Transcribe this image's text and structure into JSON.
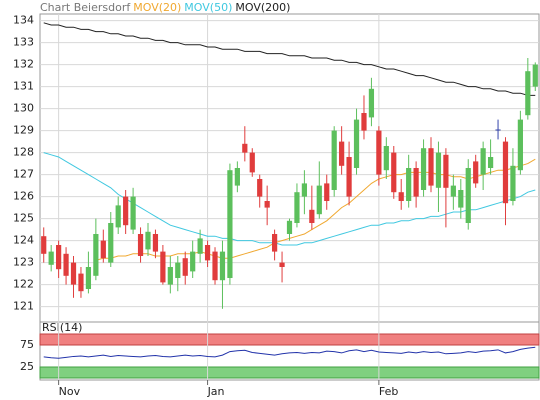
{
  "chart_data": [
    {
      "type": "candlestick",
      "title": "Chart Beiersdorf",
      "categories": [
        null,
        null,
        "Nov",
        null,
        null,
        null,
        null,
        null,
        null,
        null,
        null,
        null,
        null,
        null,
        null,
        null,
        null,
        null,
        null,
        null,
        null,
        null,
        "Jan",
        null,
        null,
        null,
        null,
        null,
        null,
        null,
        null,
        null,
        null,
        null,
        null,
        null,
        null,
        null,
        null,
        null,
        null,
        null,
        null,
        null,
        null,
        "Feb",
        null,
        null,
        null,
        null,
        null,
        null,
        null,
        null,
        null,
        null,
        null,
        null,
        null,
        null,
        null,
        null,
        null,
        null,
        null,
        null,
        null
      ],
      "open": [
        124.2,
        122.9,
        123.8,
        123.4,
        123.0,
        122.5,
        121.8,
        122.4,
        124.0,
        123.0,
        124.6,
        126.0,
        124.5,
        124.3,
        123.6,
        124.3,
        123.5,
        122.0,
        122.3,
        123.2,
        122.6,
        123.4,
        123.8,
        123.5,
        122.2,
        122.3,
        126.5,
        128.4,
        128.0,
        126.8,
        125.8,
        124.3,
        123.0,
        124.3,
        124.8,
        126.0,
        125.4,
        125.2,
        126.6,
        126.3,
        128.5,
        127.8,
        127.3,
        129.8,
        129.6,
        129.0,
        127.2,
        128.0,
        126.2,
        125.8,
        127.3,
        126.3,
        128.2,
        126.4,
        127.9,
        126.0,
        125.5,
        124.8,
        127.6,
        127.0,
        127.3,
        129.05,
        128.5,
        125.8,
        127.2,
        129.7,
        131.0
      ],
      "high": [
        124.6,
        123.8,
        124.0,
        123.7,
        123.3,
        122.8,
        123.5,
        125.0,
        124.5,
        125.3,
        126.0,
        126.3,
        126.4,
        124.6,
        124.8,
        124.5,
        123.8,
        123.3,
        123.3,
        123.5,
        124.0,
        124.5,
        124.0,
        123.7,
        124.0,
        127.5,
        127.6,
        129.2,
        128.2,
        127.0,
        126.5,
        124.5,
        123.5,
        125.0,
        126.6,
        127.2,
        126.5,
        127.6,
        127.0,
        129.2,
        129.2,
        128.5,
        130.0,
        130.6,
        131.4,
        129.2,
        128.7,
        128.3,
        126.8,
        127.9,
        127.6,
        128.6,
        128.7,
        128.5,
        128.2,
        127.0,
        126.8,
        127.7,
        127.9,
        128.5,
        128.6,
        129.5,
        128.7,
        128.2,
        129.9,
        132.3,
        132.1
      ],
      "low": [
        123.0,
        122.6,
        122.3,
        122.0,
        121.4,
        121.4,
        121.6,
        122.2,
        123.0,
        122.8,
        124.3,
        124.3,
        124.3,
        123.0,
        123.3,
        123.2,
        122.0,
        121.6,
        121.7,
        122.0,
        122.3,
        123.0,
        122.8,
        122.0,
        120.9,
        122.0,
        126.2,
        127.6,
        126.9,
        125.5,
        124.7,
        123.1,
        122.1,
        124.0,
        124.6,
        125.2,
        124.5,
        125.0,
        125.4,
        126.0,
        127.0,
        125.6,
        127.0,
        128.6,
        129.2,
        126.5,
        126.8,
        125.9,
        125.4,
        125.5,
        125.5,
        126.0,
        126.2,
        125.3,
        124.6,
        125.4,
        125.0,
        124.5,
        126.4,
        126.3,
        127.0,
        128.6,
        124.7,
        125.6,
        127.0,
        129.5,
        130.8
      ],
      "close": [
        123.4,
        123.5,
        122.7,
        122.4,
        122.0,
        121.7,
        122.8,
        124.3,
        123.2,
        124.8,
        125.6,
        124.7,
        126.0,
        123.3,
        124.4,
        123.5,
        122.1,
        122.8,
        123.0,
        122.4,
        123.5,
        124.1,
        123.1,
        122.2,
        123.5,
        127.2,
        127.3,
        128.0,
        127.1,
        126.0,
        125.5,
        123.5,
        122.8,
        124.9,
        126.2,
        126.6,
        124.8,
        126.5,
        125.8,
        129.0,
        127.4,
        126.0,
        129.5,
        129.0,
        130.9,
        127.0,
        128.3,
        126.2,
        125.8,
        127.3,
        126.0,
        128.2,
        126.5,
        128.0,
        126.4,
        126.5,
        126.3,
        127.3,
        126.6,
        128.2,
        127.8,
        129.05,
        125.7,
        127.4,
        129.5,
        131.7,
        132.0
      ],
      "up_color": "#5cbf5c",
      "down_color": "#e03c3c",
      "flat_color": "#3344aa",
      "series": [
        {
          "name": "MOV(20)",
          "color": "#f0a830",
          "values": [
            null,
            null,
            null,
            null,
            null,
            null,
            null,
            123.1,
            123.2,
            123.2,
            123.3,
            123.3,
            123.4,
            123.4,
            123.4,
            123.3,
            123.3,
            123.3,
            123.4,
            123.4,
            123.4,
            123.5,
            123.4,
            123.3,
            123.2,
            123.2,
            123.3,
            123.4,
            123.5,
            123.6,
            123.7,
            123.9,
            124.0,
            124.1,
            124.2,
            124.3,
            124.5,
            124.7,
            124.9,
            125.2,
            125.5,
            125.7,
            126.0,
            126.3,
            126.6,
            126.8,
            126.9,
            127.0,
            127.0,
            127.1,
            127.1,
            127.1,
            127.1,
            127.0,
            127.0,
            126.9,
            126.9,
            126.8,
            126.9,
            127.0,
            127.1,
            127.2,
            127.2,
            127.3,
            127.4,
            127.5,
            127.7
          ]
        },
        {
          "name": "MOV(50)",
          "color": "#40c8e0",
          "values": [
            128.0,
            127.9,
            127.8,
            127.6,
            127.4,
            127.2,
            127.0,
            126.8,
            126.6,
            126.4,
            126.1,
            125.9,
            125.7,
            125.5,
            125.3,
            125.1,
            124.9,
            124.7,
            124.6,
            124.5,
            124.4,
            124.3,
            124.2,
            124.2,
            124.1,
            124.1,
            124.0,
            124.0,
            124.0,
            123.9,
            123.9,
            123.9,
            123.8,
            123.8,
            123.8,
            123.9,
            123.9,
            124.0,
            124.1,
            124.2,
            124.3,
            124.4,
            124.5,
            124.6,
            124.7,
            124.7,
            124.8,
            124.8,
            124.9,
            124.9,
            125.0,
            125.0,
            125.1,
            125.1,
            125.2,
            125.3,
            125.3,
            125.4,
            125.4,
            125.5,
            125.6,
            125.7,
            125.8,
            125.9,
            126.0,
            126.2,
            126.3
          ]
        },
        {
          "name": "MOV(200)",
          "color": "#222222",
          "values": [
            133.9,
            133.8,
            133.8,
            133.7,
            133.7,
            133.6,
            133.6,
            133.5,
            133.5,
            133.4,
            133.4,
            133.3,
            133.3,
            133.2,
            133.2,
            133.1,
            133.1,
            133.0,
            133.0,
            132.9,
            132.9,
            132.9,
            132.8,
            132.8,
            132.7,
            132.7,
            132.7,
            132.6,
            132.6,
            132.6,
            132.5,
            132.5,
            132.5,
            132.4,
            132.4,
            132.4,
            132.3,
            132.3,
            132.3,
            132.2,
            132.2,
            132.1,
            132.1,
            132.0,
            132.0,
            131.9,
            131.8,
            131.8,
            131.7,
            131.6,
            131.5,
            131.5,
            131.4,
            131.3,
            131.2,
            131.2,
            131.1,
            131.0,
            131.0,
            130.9,
            130.9,
            130.8,
            130.8,
            130.7,
            130.7,
            130.6,
            130.6
          ]
        }
      ],
      "ylim": [
        120.3,
        134.3
      ],
      "yticks": [
        121,
        122,
        123,
        124,
        125,
        126,
        127,
        128,
        129,
        130,
        131,
        132,
        133,
        134
      ],
      "grid": true
    },
    {
      "type": "line",
      "title": "RSI(14)",
      "series": [
        {
          "name": null,
          "color": "#2233aa",
          "values": [
            48,
            46,
            45,
            47,
            49,
            50,
            48,
            50,
            52,
            49,
            51,
            50,
            49,
            48,
            50,
            51,
            49,
            48,
            50,
            52,
            50,
            51,
            49,
            48,
            52,
            60,
            62,
            63,
            58,
            56,
            54,
            52,
            55,
            57,
            58,
            56,
            58,
            57,
            61,
            60,
            57,
            62,
            64,
            60,
            63,
            59,
            58,
            57,
            56,
            59,
            57,
            60,
            58,
            59,
            55,
            56,
            57,
            60,
            58,
            61,
            62,
            64,
            57,
            60,
            65,
            68,
            70
          ]
        }
      ],
      "ylim": [
        0,
        100
      ],
      "yticks": [
        25,
        75
      ],
      "upper_band_color": "#f08080",
      "lower_band_color": "#80d080"
    }
  ]
}
